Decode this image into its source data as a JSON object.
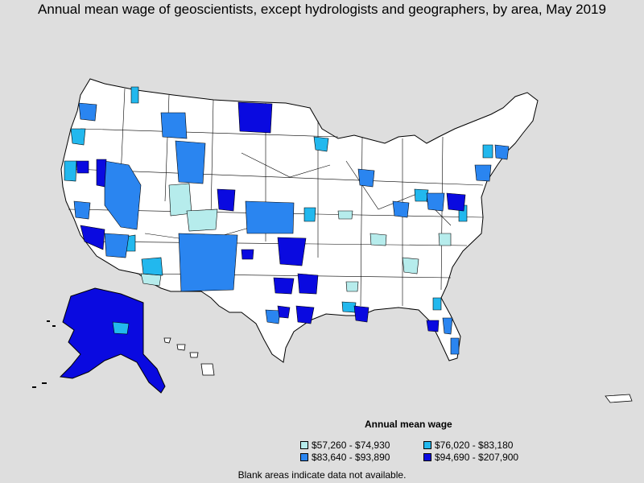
{
  "title": "Annual mean wage of geoscientists, except hydrologists and geographers, by area, May 2019",
  "legend": {
    "title": "Annual mean wage",
    "items": [
      {
        "label": "$57,260 - $74,930",
        "color": "#b6ecec"
      },
      {
        "label": "$76,020 - $83,180",
        "color": "#22b8ee"
      },
      {
        "label": "$83,640 - $93,890",
        "color": "#2a85f0"
      },
      {
        "label": "$94,690 - $207,900",
        "color": "#0a0ae0"
      }
    ]
  },
  "note": "Blank areas indicate data not available.",
  "colors": {
    "background": "#dedede",
    "land": "#ffffff",
    "border": "#000000"
  }
}
